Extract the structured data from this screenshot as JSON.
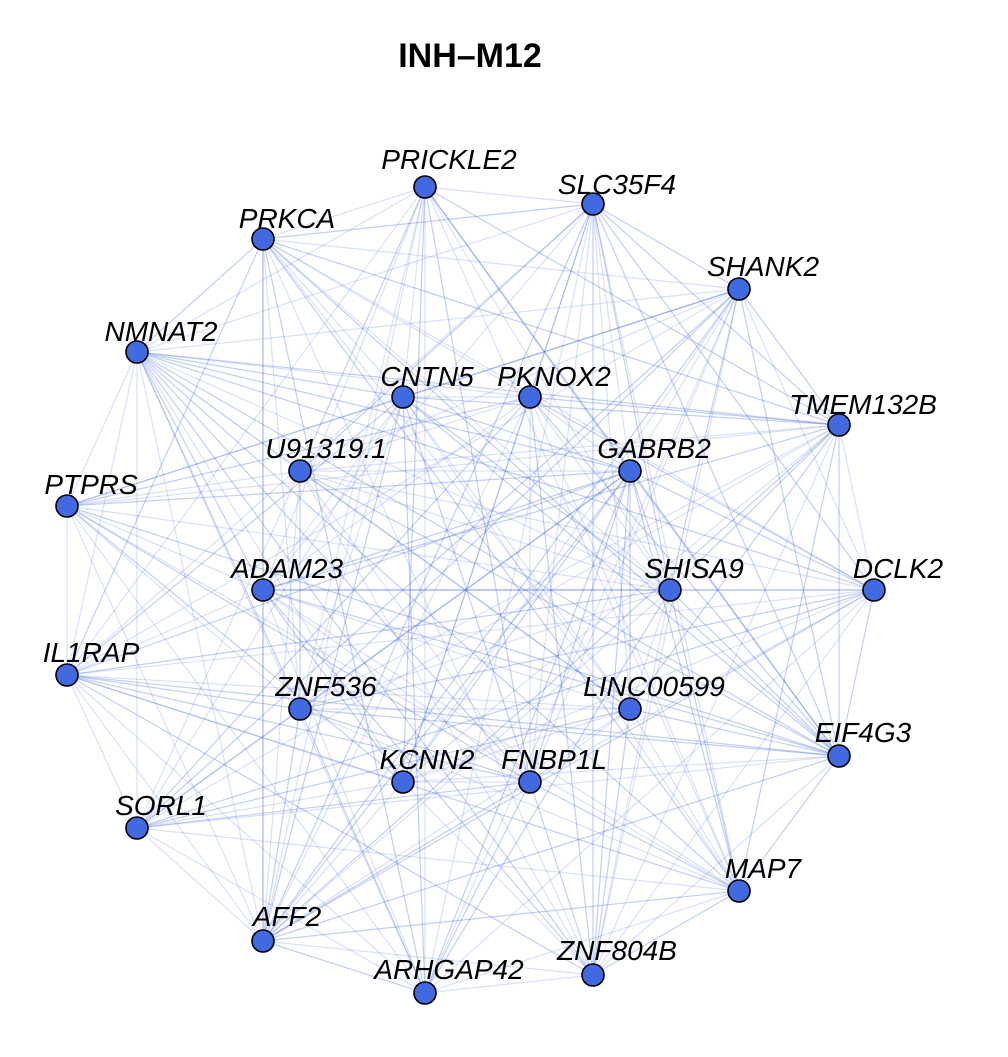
{
  "title": "INH–M12",
  "colors": {
    "node_fill": "#4169E1",
    "node_stroke": "#000000",
    "edge": "#4169E1"
  },
  "nodes": [
    {
      "id": "PRICKLE2"
    },
    {
      "id": "SLC35F4"
    },
    {
      "id": "PRKCA"
    },
    {
      "id": "SHANK2"
    },
    {
      "id": "NMNAT2"
    },
    {
      "id": "CNTN5"
    },
    {
      "id": "PKNOX2"
    },
    {
      "id": "TMEM132B"
    },
    {
      "id": "U91319.1"
    },
    {
      "id": "GABRB2"
    },
    {
      "id": "PTPRS"
    },
    {
      "id": "ADAM23"
    },
    {
      "id": "SHISA9"
    },
    {
      "id": "DCLK2"
    },
    {
      "id": "IL1RAP"
    },
    {
      "id": "ZNF536"
    },
    {
      "id": "LINC00599"
    },
    {
      "id": "EIF4G3"
    },
    {
      "id": "KCNN2"
    },
    {
      "id": "FNBP1L"
    },
    {
      "id": "SORL1"
    },
    {
      "id": "MAP7"
    },
    {
      "id": "AFF2"
    },
    {
      "id": "ZNF804B"
    },
    {
      "id": "ARHGAP42"
    }
  ]
}
